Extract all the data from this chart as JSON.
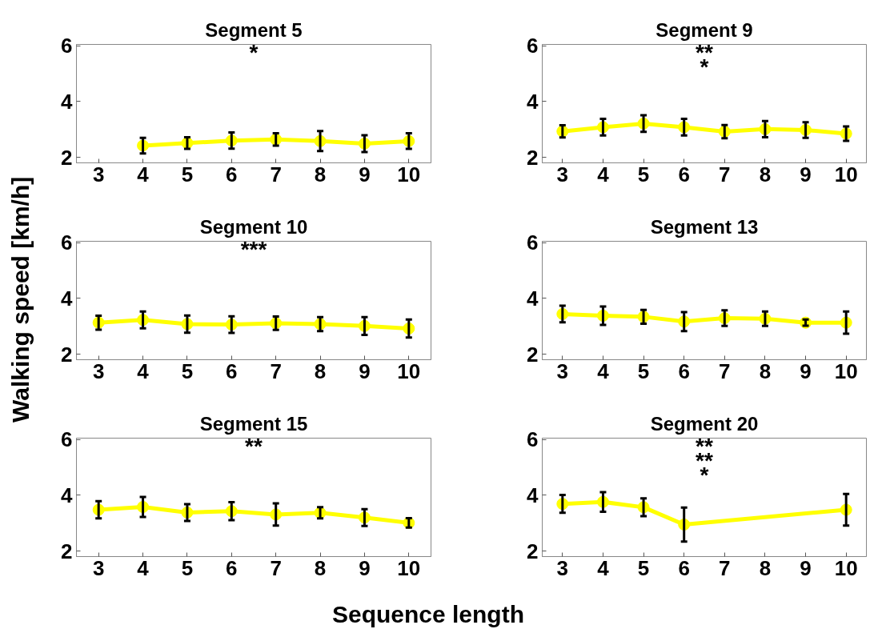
{
  "chart_data": [
    {
      "type": "line",
      "title": "Segment 5",
      "x": [
        4,
        5,
        6,
        7,
        8,
        9,
        10
      ],
      "values": [
        2.42,
        2.51,
        2.6,
        2.64,
        2.58,
        2.49,
        2.58
      ],
      "errors": [
        0.28,
        0.21,
        0.29,
        0.22,
        0.36,
        0.3,
        0.28
      ],
      "color": "#ffff00",
      "marker": "circle",
      "xlim": [
        2.5,
        10.5
      ],
      "ylim": [
        1.8,
        6.05
      ],
      "xticks": [
        3,
        4,
        5,
        6,
        7,
        8,
        9,
        10
      ],
      "yticks": [
        2,
        4,
        6
      ],
      "grid": false,
      "annotations": [
        "*"
      ]
    },
    {
      "type": "line",
      "title": "Segment 9",
      "x": [
        3,
        4,
        5,
        6,
        7,
        8,
        9,
        10
      ],
      "values": [
        2.93,
        3.08,
        3.21,
        3.08,
        2.92,
        3.01,
        2.98,
        2.85
      ],
      "errors": [
        0.22,
        0.3,
        0.3,
        0.3,
        0.24,
        0.29,
        0.28,
        0.26
      ],
      "color": "#ffff00",
      "marker": "circle",
      "xlim": [
        2.5,
        10.5
      ],
      "ylim": [
        1.8,
        6.05
      ],
      "xticks": [
        3,
        4,
        5,
        6,
        7,
        8,
        9,
        10
      ],
      "yticks": [
        2,
        4,
        6
      ],
      "grid": false,
      "annotations": [
        "**",
        "*"
      ]
    },
    {
      "type": "line",
      "title": "Segment 10",
      "ylabel": "Walking speed [km/h]",
      "x": [
        3,
        4,
        5,
        6,
        7,
        8,
        9,
        10
      ],
      "values": [
        3.13,
        3.23,
        3.08,
        3.06,
        3.11,
        3.08,
        3.01,
        2.92
      ],
      "errors": [
        0.25,
        0.3,
        0.31,
        0.3,
        0.24,
        0.25,
        0.32,
        0.32
      ],
      "color": "#ffff00",
      "marker": "circle",
      "xlim": [
        2.5,
        10.5
      ],
      "ylim": [
        1.8,
        6.05
      ],
      "xticks": [
        3,
        4,
        5,
        6,
        7,
        8,
        9,
        10
      ],
      "yticks": [
        2,
        4,
        6
      ],
      "grid": false,
      "annotations": [
        "***"
      ]
    },
    {
      "type": "line",
      "title": "Segment 13",
      "x": [
        3,
        4,
        5,
        6,
        7,
        8,
        9,
        10
      ],
      "values": [
        3.44,
        3.38,
        3.34,
        3.17,
        3.29,
        3.27,
        3.13,
        3.13
      ],
      "errors": [
        0.3,
        0.33,
        0.25,
        0.34,
        0.28,
        0.26,
        0.11,
        0.4
      ],
      "color": "#ffff00",
      "marker": "circle",
      "xlim": [
        2.5,
        10.5
      ],
      "ylim": [
        1.8,
        6.05
      ],
      "xticks": [
        3,
        4,
        5,
        6,
        7,
        8,
        9,
        10
      ],
      "yticks": [
        2,
        4,
        6
      ],
      "grid": false
    },
    {
      "type": "line",
      "title": "Segment 15",
      "xlabel": "Sequence length",
      "x": [
        3,
        4,
        5,
        6,
        7,
        8,
        9,
        10
      ],
      "values": [
        3.48,
        3.58,
        3.38,
        3.43,
        3.31,
        3.37,
        3.2,
        3.01
      ],
      "errors": [
        0.31,
        0.36,
        0.3,
        0.32,
        0.4,
        0.2,
        0.3,
        0.17
      ],
      "color": "#ffff00",
      "marker": "circle",
      "xlim": [
        2.5,
        10.5
      ],
      "ylim": [
        1.8,
        6.05
      ],
      "xticks": [
        3,
        4,
        5,
        6,
        7,
        8,
        9,
        10
      ],
      "yticks": [
        2,
        4,
        6
      ],
      "grid": false,
      "annotations": [
        "**"
      ]
    },
    {
      "type": "line",
      "title": "Segment 20",
      "x": [
        3,
        4,
        5,
        6,
        10
      ],
      "values": [
        3.69,
        3.76,
        3.57,
        2.95,
        3.48
      ],
      "errors": [
        0.32,
        0.35,
        0.32,
        0.61,
        0.57
      ],
      "color": "#ffff00",
      "marker": "circle",
      "xlim": [
        2.5,
        10.5
      ],
      "ylim": [
        1.8,
        6.05
      ],
      "xticks": [
        3,
        4,
        5,
        6,
        7,
        8,
        9,
        10
      ],
      "yticks": [
        2,
        4,
        6
      ],
      "grid": false,
      "annotations": [
        "**",
        "**",
        "*"
      ]
    }
  ]
}
